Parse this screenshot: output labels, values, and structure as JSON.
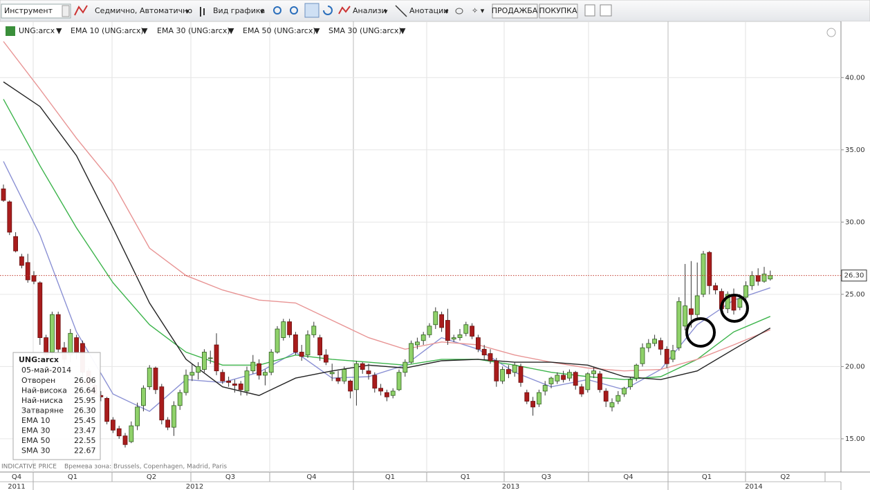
{
  "toolbar": {
    "instrument": "Инструмент",
    "interval": "Седмично, Автоматично",
    "chart_view": "Вид графика",
    "analyses": "Анализи",
    "annotations": "Анотации",
    "sell": "ПРОДАЖБА",
    "buy": "ПОКУПКА"
  },
  "chart_data": {
    "type": "candlestick",
    "series": [
      {
        "name": "UNG:arcx",
        "color": "#d46a00",
        "up_color": "#8fd16a",
        "down_color": "#a81c1c",
        "open": [
          32.3,
          31.4,
          29.0,
          27.6,
          27.2,
          26.3,
          25.8,
          22.0,
          21.0,
          23.6,
          21.3,
          20.8,
          22.0,
          21.6,
          19.7,
          18.7,
          18.0,
          17.8,
          16.3,
          15.7,
          15.2,
          14.8,
          15.9,
          17.3,
          18.6,
          19.9,
          18.6,
          16.3,
          15.8,
          17.3,
          18.2,
          19.4,
          19.6,
          19.8,
          20.6,
          21.5,
          19.6,
          19.0,
          18.8,
          18.8,
          18.3,
          19.7,
          20.2,
          19.4,
          19.6,
          21.0,
          22.0,
          23.1,
          22.2,
          21.0,
          20.8,
          22.2,
          22.0,
          20.8,
          19.5,
          19.2,
          19.0,
          19.0,
          18.4,
          20.2,
          19.7,
          19.4,
          18.5,
          18.2,
          18.0,
          18.4,
          19.6,
          20.3,
          21.5,
          21.8,
          22.2,
          22.9,
          23.6,
          23.2,
          21.9,
          22.0,
          22.3,
          22.8,
          22.0,
          21.2,
          20.9,
          20.4,
          19.0,
          19.8,
          19.6,
          20.0,
          18.2,
          17.6,
          17.4,
          18.3,
          18.8,
          19.0,
          19.4,
          19.2,
          19.6,
          18.6,
          18.4,
          19.5,
          19.5,
          18.3,
          17.2,
          17.6,
          18.1,
          18.6,
          19.2,
          20.2,
          21.3,
          21.6,
          21.8,
          21.2,
          20.5,
          21.3,
          22.8,
          24.0,
          23.6,
          25.0,
          27.9,
          25.6,
          25.2,
          24.0,
          24.9,
          24.1,
          24.8,
          25.6,
          26.3,
          25.9,
          26.06
        ],
        "high": [
          32.6,
          31.5,
          29.3,
          27.8,
          27.8,
          26.6,
          25.9,
          22.2,
          23.8,
          23.8,
          21.7,
          22.6,
          22.2,
          21.8,
          19.9,
          19.2,
          18.3,
          17.9,
          16.5,
          15.9,
          15.4,
          16.2,
          17.5,
          18.7,
          20.1,
          20.0,
          18.8,
          16.5,
          17.6,
          18.4,
          19.8,
          20.2,
          20.3,
          21.2,
          21.1,
          22.3,
          19.8,
          19.3,
          19.1,
          19.0,
          20.0,
          20.8,
          20.5,
          19.8,
          21.2,
          22.8,
          23.3,
          23.3,
          22.4,
          21.5,
          22.5,
          23.1,
          22.2,
          21.2,
          20.2,
          19.7,
          20.0,
          19.1,
          20.4,
          20.3,
          20.2,
          19.6,
          18.8,
          18.4,
          18.5,
          19.8,
          20.5,
          21.8,
          22.0,
          22.4,
          23.0,
          24.1,
          23.8,
          24.0,
          22.2,
          22.6,
          23.1,
          23.0,
          22.2,
          21.5,
          21.2,
          20.6,
          20.0,
          20.1,
          20.3,
          20.2,
          18.4,
          17.9,
          18.4,
          19.0,
          19.3,
          19.6,
          19.7,
          19.8,
          19.7,
          18.8,
          19.6,
          20.0,
          19.7,
          18.5,
          17.8,
          18.3,
          18.6,
          19.3,
          20.2,
          21.6,
          21.9,
          22.2,
          22.0,
          21.4,
          21.5,
          24.8,
          27.1,
          27.3,
          27.2,
          28.0,
          28.0,
          25.8,
          25.4,
          25.2,
          25.4,
          25.0,
          25.9,
          26.6,
          26.8,
          26.9,
          26.64
        ],
        "low": [
          31.4,
          29.1,
          27.9,
          26.8,
          25.8,
          25.7,
          21.5,
          20.4,
          20.7,
          21.0,
          20.2,
          20.3,
          20.5,
          19.3,
          18.6,
          17.8,
          17.6,
          16.0,
          15.4,
          15.0,
          14.4,
          14.7,
          15.6,
          16.9,
          18.4,
          18.1,
          16.0,
          15.6,
          15.2,
          17.0,
          18.0,
          19.0,
          19.1,
          19.6,
          20.2,
          19.4,
          18.8,
          18.6,
          18.2,
          18.0,
          18.0,
          19.5,
          19.1,
          18.7,
          19.4,
          20.9,
          21.8,
          22.0,
          20.8,
          20.4,
          20.6,
          22.0,
          20.4,
          20.1,
          19.0,
          18.8,
          18.8,
          17.8,
          17.3,
          19.5,
          19.1,
          18.2,
          18.0,
          17.6,
          17.8,
          18.3,
          19.3,
          20.2,
          21.2,
          21.5,
          22.0,
          22.6,
          22.4,
          21.5,
          21.7,
          21.8,
          22.1,
          21.9,
          21.0,
          20.5,
          20.2,
          18.6,
          18.8,
          19.2,
          19.3,
          18.6,
          17.4,
          16.6,
          17.2,
          18.0,
          18.5,
          18.8,
          18.9,
          19.0,
          18.4,
          17.9,
          18.2,
          19.2,
          18.2,
          17.2,
          16.9,
          17.4,
          17.9,
          18.4,
          19.0,
          20.0,
          21.0,
          21.4,
          20.8,
          19.9,
          20.3,
          21.1,
          22.5,
          22.7,
          23.4,
          24.8,
          25.0,
          25.0,
          23.6,
          23.7,
          23.6,
          23.9,
          24.6,
          25.3,
          25.6,
          25.8,
          25.95
        ],
        "close": [
          31.5,
          29.3,
          28.0,
          27.0,
          26.0,
          25.9,
          22.0,
          20.8,
          23.6,
          21.2,
          20.5,
          22.3,
          21.0,
          19.6,
          18.8,
          18.1,
          17.9,
          16.2,
          15.6,
          15.2,
          14.6,
          15.9,
          17.2,
          18.5,
          19.9,
          18.4,
          16.3,
          15.8,
          17.3,
          18.2,
          19.4,
          19.6,
          20.0,
          21.0,
          20.6,
          19.7,
          19.0,
          18.9,
          18.7,
          18.4,
          19.7,
          20.3,
          19.4,
          19.6,
          21.0,
          22.6,
          23.1,
          22.2,
          21.0,
          20.7,
          22.2,
          22.8,
          20.8,
          20.3,
          19.6,
          19.0,
          19.8,
          18.3,
          20.2,
          19.8,
          19.5,
          18.5,
          18.3,
          17.9,
          18.3,
          19.6,
          20.3,
          21.6,
          21.7,
          22.2,
          22.8,
          23.8,
          22.7,
          21.8,
          22.0,
          22.2,
          22.9,
          22.1,
          21.2,
          20.8,
          20.4,
          19.0,
          19.8,
          19.5,
          20.1,
          18.9,
          17.6,
          17.2,
          18.2,
          18.7,
          19.2,
          19.4,
          19.1,
          19.6,
          18.7,
          18.1,
          19.5,
          19.7,
          18.4,
          17.6,
          17.5,
          18.0,
          18.5,
          19.1,
          20.1,
          21.3,
          21.6,
          21.9,
          21.2,
          20.2,
          21.1,
          24.5,
          24.2,
          23.6,
          24.9,
          27.8,
          25.6,
          25.3,
          24.0,
          25.0,
          23.9,
          24.7,
          25.6,
          26.3,
          25.9,
          26.4,
          26.3
        ]
      }
    ],
    "lines": [
      {
        "name": "EMA 10 (UNG:arcx)",
        "color": "#8a90d4",
        "label_color": "#5560b0",
        "x": [
          0,
          6,
          12,
          18,
          24,
          30,
          36,
          42,
          48,
          54,
          60,
          66,
          72,
          78,
          84,
          90,
          96,
          102,
          108,
          114,
          120,
          126
        ],
        "values": [
          34.2,
          29.1,
          22.4,
          18.1,
          16.9,
          19.1,
          18.9,
          19.6,
          21.0,
          19.2,
          19.3,
          20.1,
          22.0,
          21.2,
          19.6,
          18.6,
          19.1,
          18.4,
          19.8,
          22.9,
          24.6,
          25.45
        ]
      },
      {
        "name": "EMA 30 (UNG:arcx)",
        "color": "#3cb44b",
        "label_color": "#2a9a2a",
        "x": [
          0,
          6,
          12,
          18,
          24,
          30,
          36,
          42,
          48,
          54,
          60,
          66,
          72,
          78,
          84,
          90,
          96,
          102,
          108,
          114,
          120,
          126
        ],
        "values": [
          38.5,
          33.9,
          29.6,
          25.8,
          22.9,
          21.0,
          20.1,
          20.1,
          20.8,
          20.5,
          20.3,
          20.1,
          20.5,
          20.5,
          20.1,
          19.6,
          19.3,
          19.1,
          19.3,
          20.5,
          22.4,
          23.47
        ]
      },
      {
        "name": "EMA 50 (UNG:arcx)",
        "color": "#e89494",
        "label_color": "#c84040",
        "x": [
          0,
          6,
          12,
          18,
          24,
          30,
          36,
          42,
          48,
          54,
          60,
          66,
          72,
          78,
          84,
          90,
          96,
          102,
          108,
          114,
          120,
          126
        ],
        "values": [
          42.5,
          39.2,
          35.8,
          32.7,
          28.2,
          26.3,
          25.3,
          24.6,
          24.4,
          23.2,
          22.0,
          21.2,
          21.7,
          21.5,
          20.8,
          20.3,
          19.9,
          19.7,
          19.8,
          20.5,
          21.5,
          22.55
        ]
      },
      {
        "name": "SMA 30 (UNG:arcx)",
        "color": "#222222",
        "label_color": "#111111",
        "x": [
          0,
          6,
          12,
          18,
          24,
          30,
          36,
          42,
          48,
          54,
          60,
          66,
          72,
          78,
          84,
          90,
          96,
          102,
          108,
          114,
          120,
          126
        ],
        "values": [
          39.7,
          38.0,
          34.6,
          29.6,
          24.4,
          20.5,
          18.6,
          18.0,
          19.2,
          19.7,
          20.1,
          19.9,
          20.4,
          20.5,
          20.3,
          20.3,
          20.1,
          19.3,
          19.1,
          19.7,
          21.2,
          22.67
        ]
      }
    ],
    "ylim": [
      12.7,
      42.5
    ],
    "yticks": [
      {
        "value": 15,
        "label": "15.00"
      },
      {
        "value": 20,
        "label": "20.00"
      },
      {
        "value": 25,
        "label": "25.00"
      },
      {
        "value": 30,
        "label": "30.00"
      },
      {
        "value": 35,
        "label": "35.00"
      },
      {
        "value": 40,
        "label": "40.00"
      }
    ],
    "last_price": {
      "value": 26.3,
      "label": "26.30"
    },
    "grid": true,
    "quarters": [
      "Q4",
      "Q1",
      "Q2",
      "Q3",
      "Q4",
      "Q1",
      "Q1",
      "Q3",
      "Q4",
      "Q1",
      "Q2"
    ],
    "years": [
      "2011",
      "2012",
      "2013",
      "2014"
    ]
  },
  "info_box": {
    "title": "UNG:arcx",
    "date": "05-май-2014",
    "rows": [
      [
        "Отворен",
        "26.06"
      ],
      [
        "Най-висока",
        "26.64"
      ],
      [
        "Най-ниска",
        "25.95"
      ],
      [
        "Затваряне",
        "26.30"
      ],
      [
        "EMA 10",
        "25.45"
      ],
      [
        "EMA 30",
        "23.47"
      ],
      [
        "EMA 50",
        "22.55"
      ],
      [
        "SMA 30",
        "22.67"
      ]
    ]
  },
  "footer": {
    "price_type": "INDICATIVE PRICE",
    "timezone": "Времева зона: Brussels, Copenhagen, Madrid, Paris"
  }
}
